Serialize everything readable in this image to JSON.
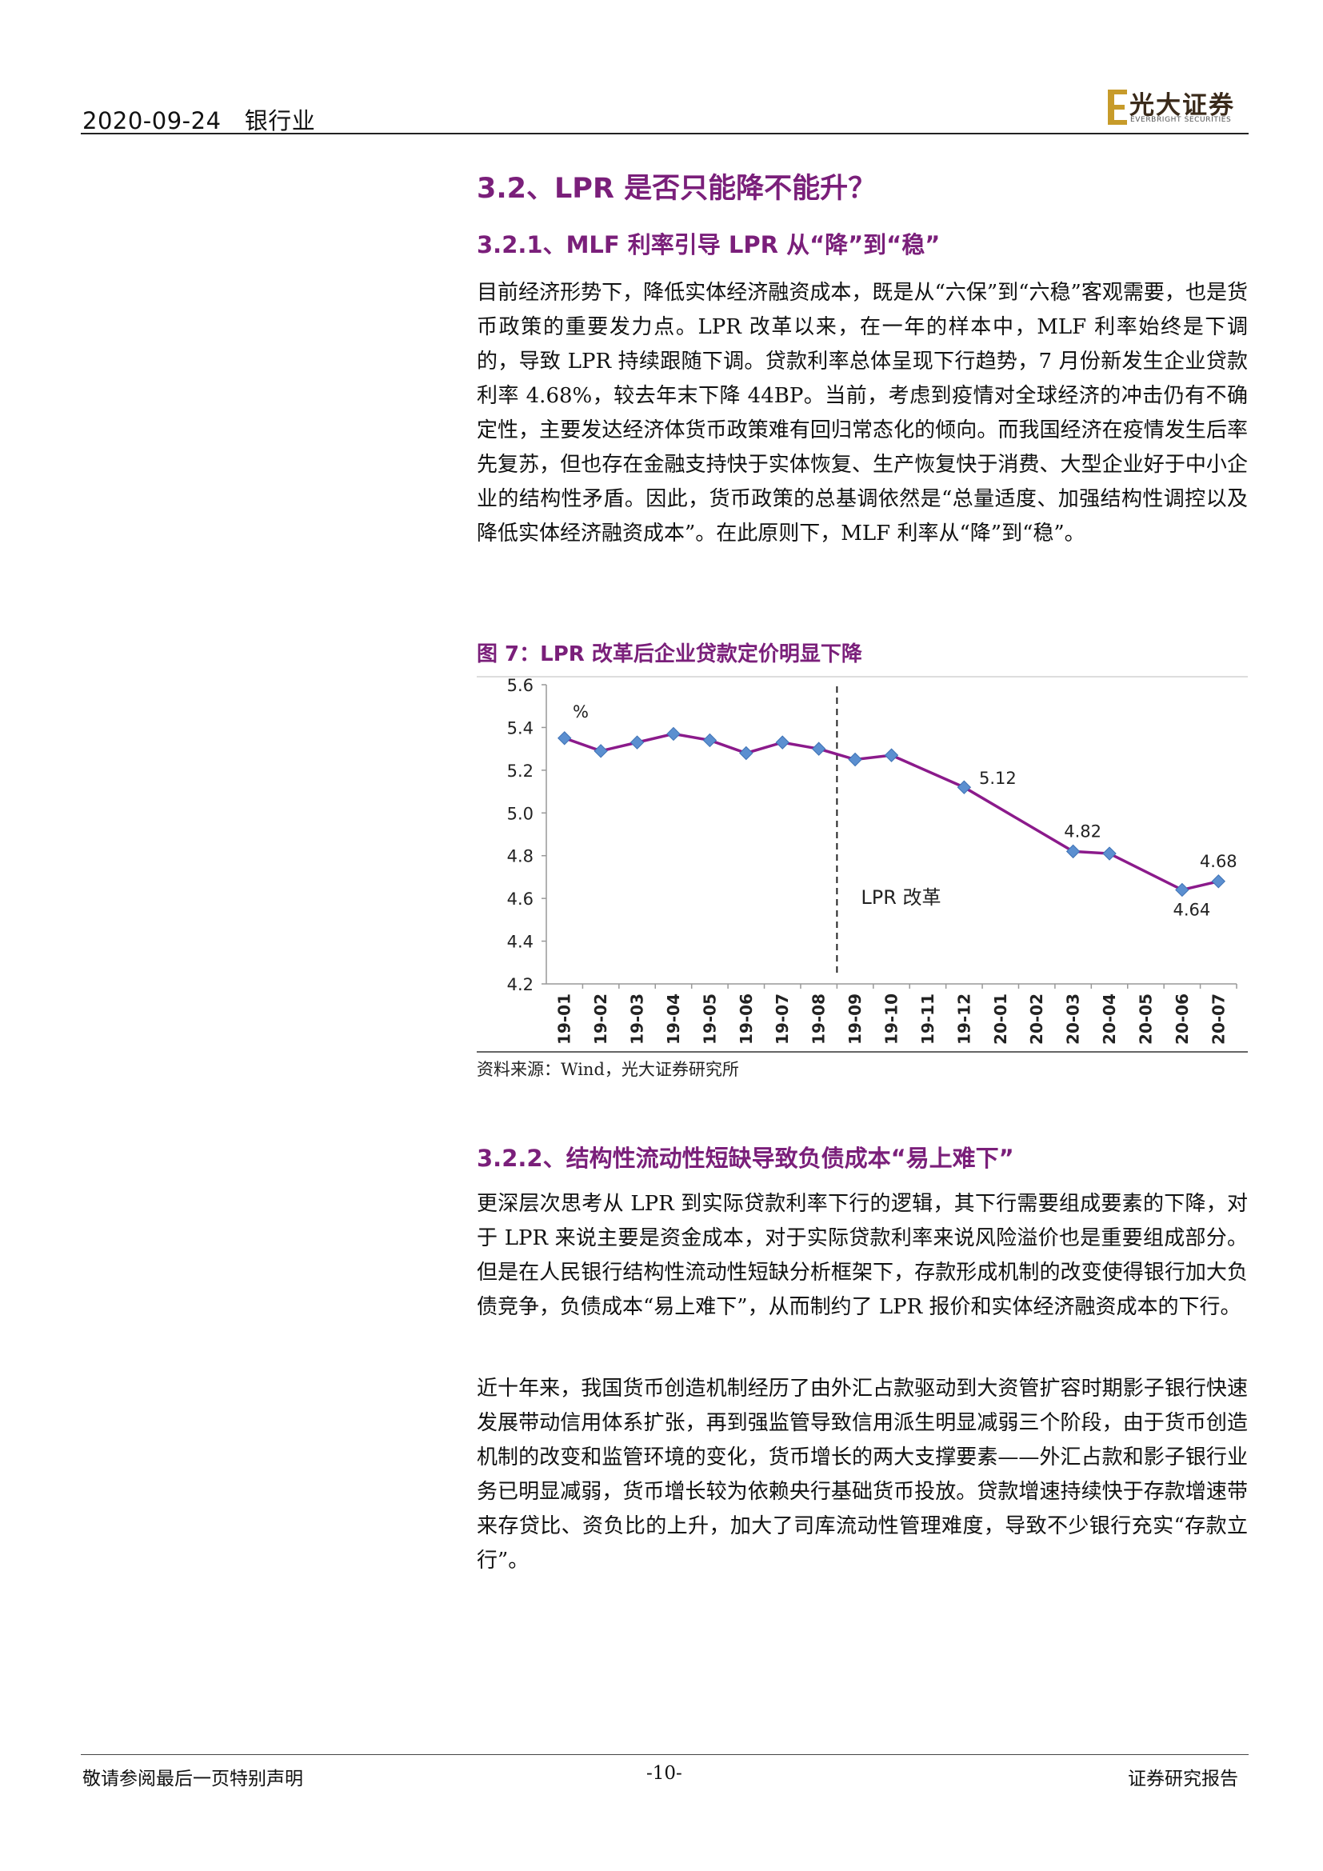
{
  "header": {
    "date": "2020-09-24",
    "industry": "银行业",
    "logo_cn": "光大证券",
    "logo_en": "EVERBRIGHT SECURITIES"
  },
  "section": {
    "title": "3.2、LPR 是否只能降不能升？",
    "sub1_title": "3.2.1、MLF 利率引导 LPR 从“降”到“稳”",
    "para1": "目前经济形势下，降低实体经济融资成本，既是从“六保”到“六稳”客观需要，也是货币政策的重要发力点。LPR 改革以来，在一年的样本中，MLF 利率始终是下调的，导致 LPR 持续跟随下调。贷款利率总体呈现下行趋势，7 月份新发生企业贷款利率 4.68%，较去年末下降 44BP。当前，考虑到疫情对全球经济的冲击仍有不确定性，主要发达经济体货币政策难有回归常态化的倾向。而我国经济在疫情发生后率先复苏，但也存在金融支持快于实体恢复、生产恢复快于消费、大型企业好于中小企业的结构性矛盾。因此，货币政策的总基调依然是“总量适度、加强结构性调控以及降低实体经济融资成本”。在此原则下，MLF 利率从“降”到“稳”。",
    "figure_title": "图 7：LPR 改革后企业贷款定价明显下降",
    "figure_source": "资料来源：Wind，光大证券研究所",
    "sub2_title": "3.2.2、结构性流动性短缺导致负债成本“易上难下”",
    "para2": "更深层次思考从 LPR 到实际贷款利率下行的逻辑，其下行需要组成要素的下降，对于 LPR 来说主要是资金成本，对于实际贷款利率来说风险溢价也是重要组成部分。但是在人民银行结构性流动性短缺分析框架下，存款形成机制的改变使得银行加大负债竞争，负债成本“易上难下”，从而制约了 LPR 报价和实体经济融资成本的下行。",
    "para3": "近十年来，我国货币创造机制经历了由外汇占款驱动到大资管扩容时期影子银行快速发展带动信用体系扩张，再到强监管导致信用派生明显减弱三个阶段，由于货币创造机制的改变和监管环境的变化，货币增长的两大支撑要素——外汇占款和影子银行业务已明显减弱，货币增长较为依赖央行基础货币投放。贷款增速持续快于存款增速带来存贷比、资负比的上升，加大了司库流动性管理难度，导致不少银行充实“存款立行”。"
  },
  "chart_data": {
    "type": "line",
    "unit_label": "%",
    "categories": [
      "19-01",
      "19-02",
      "19-03",
      "19-04",
      "19-05",
      "19-06",
      "19-07",
      "19-08",
      "19-09",
      "19-10",
      "19-11",
      "19-12",
      "20-01",
      "20-02",
      "20-03",
      "20-04",
      "20-05",
      "20-06",
      "20-07"
    ],
    "series": [
      {
        "values": [
          5.35,
          5.29,
          5.33,
          5.37,
          5.34,
          5.28,
          5.33,
          5.3,
          5.25,
          5.27,
          null,
          5.12,
          null,
          null,
          4.82,
          4.81,
          null,
          4.64,
          4.68
        ]
      }
    ],
    "data_labels": [
      {
        "category": "19-12",
        "text": "5.12"
      },
      {
        "category": "20-03",
        "text": "4.82"
      },
      {
        "category": "20-06",
        "text": "4.64"
      },
      {
        "category": "20-07",
        "text": "4.68"
      }
    ],
    "yticks": [
      "4.2",
      "4.4",
      "4.6",
      "4.8",
      "5.0",
      "5.2",
      "5.4",
      "5.6"
    ],
    "ylim": [
      4.2,
      5.6
    ],
    "reform_marker": {
      "after_category": "19-08",
      "label": "LPR 改革"
    },
    "grid": false,
    "line_color": "#8b1a8b",
    "marker_color": "#5b8fd0"
  },
  "footer": {
    "left": "敬请参阅最后一页特别声明",
    "page": "-10-",
    "right": "证券研究报告"
  }
}
